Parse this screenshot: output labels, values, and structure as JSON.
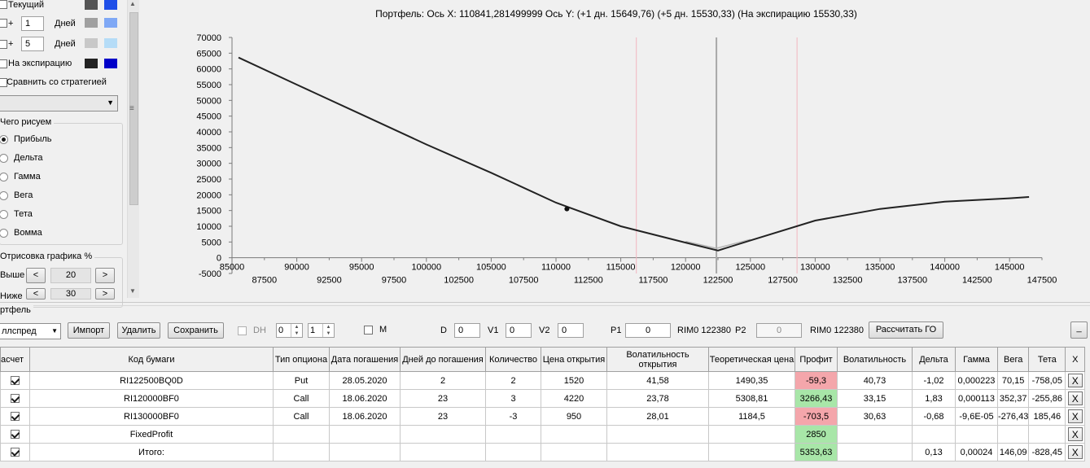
{
  "left_panel": {
    "rows": [
      {
        "label": "Текущий",
        "checked": false,
        "color1": "#555555",
        "color2": "#1f4fe8"
      },
      {
        "prefix": "+",
        "days": "1",
        "unit": "Дней",
        "color1": "#a0a0a0",
        "color2": "#7fa8f5"
      },
      {
        "prefix": "+",
        "days": "5",
        "unit": "Дней",
        "color1": "#c8c8c8",
        "color2": "#b5dcf7"
      },
      {
        "label": "На экспирацию",
        "checked": false,
        "color1": "#222222",
        "color2": "#0000c8"
      }
    ],
    "compare_label": "Сравнить со стратегией",
    "what_draw_group": "Чего рисуем",
    "radios": [
      "Прибыль",
      "Дельта",
      "Гамма",
      "Вега",
      "Тета",
      "Вомма"
    ],
    "radio_selected": 0,
    "draw_group": "Отрисовка графика %",
    "above_label": "Выше",
    "above_value": "20",
    "below_label": "Ниже",
    "below_value": "30",
    "btn_prev": "<",
    "btn_next": ">"
  },
  "chart_header": {
    "text": "Портфель: Ось X:  110841,281499999 Ось Y:   (+1 дн.  15649,76)  (+5 дн.  15530,33)  (На экспирацию  15530,33)"
  },
  "chart_data": {
    "type": "line",
    "title": "Портфель: Ось X:  110841,281499999 Ось Y:   (+1 дн.  15649,76)  (+5 дн.  15530,33)  (На экспирацию  15530,33)",
    "xlim": [
      85000,
      147500
    ],
    "ylim": [
      -5000,
      70000
    ],
    "x_ticks_upper": [
      "85000",
      "90000",
      "95000",
      "100000",
      "105000",
      "110000",
      "115000",
      "120000",
      "125000",
      "130000",
      "135000",
      "140000",
      "145000"
    ],
    "x_ticks_lower": [
      "87500",
      "92500",
      "97500",
      "102500",
      "107500",
      "112500",
      "117500",
      "122500",
      "127500",
      "132500",
      "137500",
      "142500",
      "147500"
    ],
    "y_ticks": [
      "70000",
      "65000",
      "60000",
      "55000",
      "50000",
      "45000",
      "40000",
      "35000",
      "30000",
      "25000",
      "20000",
      "15000",
      "10000",
      "5000",
      "0",
      "-5000"
    ],
    "vertical_lines": [
      {
        "x": 116200,
        "color": "#f2b5c0"
      },
      {
        "x": 122380,
        "color": "#a8a8a8"
      },
      {
        "x": 128600,
        "color": "#f2b5c0"
      }
    ],
    "marker": {
      "x": 110841,
      "y": 15530
    },
    "series": [
      {
        "color": "#222222",
        "x": [
          85500,
          90000,
          95000,
          100000,
          105000,
          110000,
          115000,
          120000,
          122500,
          125000,
          130000,
          135000,
          140000,
          145000,
          146500
        ],
        "y": [
          63600,
          55000,
          45500,
          36000,
          27000,
          17500,
          10000,
          4800,
          2300,
          5500,
          11800,
          15500,
          17800,
          18900,
          19300
        ]
      },
      {
        "color": "#b4b4b4",
        "x": [
          120000,
          122380,
          125000
        ],
        "y": [
          5200,
          3000,
          5800
        ]
      }
    ]
  },
  "portfolio": {
    "group_label": "ртфель",
    "strategy_select": "ллспред",
    "btn_import": "Импорт",
    "btn_delete": "Удалить",
    "btn_save": "Сохранить",
    "dh_label": "DH",
    "spin1": "0",
    "spin2": "1",
    "m_label": "M",
    "d_label": "D",
    "d_value": "0",
    "v1_label": "V1",
    "v1_value": "0",
    "v2_label": "V2",
    "v2_value": "0",
    "p1_label": "P1",
    "p1_value": "0",
    "rim1": "RIM0 122380",
    "p2_label": "P2",
    "p2_value": "0",
    "rim2": "RIM0 122380",
    "btn_go": "Рассчитать ГО",
    "btn_min": "_"
  },
  "table": {
    "headers": [
      "асчет",
      "Код бумаги",
      "Тип опциона",
      "Дата погашения",
      "Дней до погашения",
      "Количество",
      "Цена открытия",
      "Волатильность открытия",
      "Теоретическая цена",
      "Профит",
      "Волатильность",
      "Дельта",
      "Гамма",
      "Вега",
      "Тета",
      "X"
    ],
    "rows": [
      {
        "code": "RI122500BQ0D",
        "type": "Put",
        "date": "28.05.2020",
        "days": "2",
        "qty": "2",
        "price": "1520",
        "vol_open": "41,58",
        "theo": "1490,35",
        "profit": "-59,3",
        "profit_color": "red",
        "vol": "40,73",
        "delta": "-1,02",
        "gamma": "0,000223",
        "vega": "70,15",
        "theta": "-758,05",
        "x": "X"
      },
      {
        "code": "RI120000BF0",
        "type": "Call",
        "date": "18.06.2020",
        "days": "23",
        "qty": "3",
        "price": "4220",
        "vol_open": "23,78",
        "theo": "5308,81",
        "profit": "3266,43",
        "profit_color": "green",
        "vol": "33,15",
        "delta": "1,83",
        "gamma": "0,000113",
        "vega": "352,37",
        "theta": "-255,86",
        "x": "X"
      },
      {
        "code": "RI130000BF0",
        "type": "Call",
        "date": "18.06.2020",
        "days": "23",
        "qty": "-3",
        "price": "950",
        "vol_open": "28,01",
        "theo": "1184,5",
        "profit": "-703,5",
        "profit_color": "red",
        "vol": "30,63",
        "delta": "-0,68",
        "gamma": "-9,6E-05",
        "vega": "-276,43",
        "theta": "185,46",
        "x": "X"
      },
      {
        "code": "FixedProfit",
        "type": "",
        "date": "",
        "days": "",
        "qty": "",
        "price": "",
        "vol_open": "",
        "theo": "",
        "profit": "2850",
        "profit_color": "green",
        "vol": "",
        "delta": "",
        "gamma": "",
        "vega": "",
        "theta": "",
        "x": "X"
      },
      {
        "code": "Итого:",
        "type": "",
        "date": "",
        "days": "",
        "qty": "",
        "price": "",
        "vol_open": "",
        "theo": "",
        "profit": "5353,63",
        "profit_color": "green",
        "vol": "",
        "delta": "0,13",
        "gamma": "0,00024",
        "vega": "146,09",
        "theta": "-828,45",
        "x": "X"
      }
    ]
  }
}
